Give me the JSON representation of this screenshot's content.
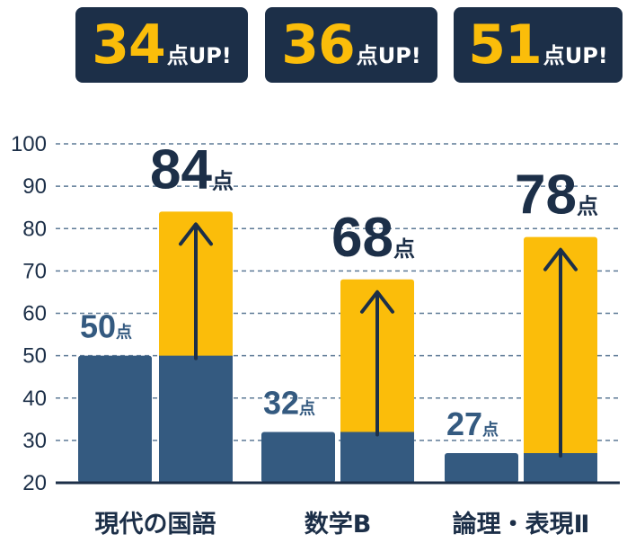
{
  "badges": [
    {
      "value": "34",
      "suffix": "点UP!"
    },
    {
      "value": "36",
      "suffix": "点UP!"
    },
    {
      "value": "51",
      "suffix": "点UP!"
    }
  ],
  "chart_data": {
    "type": "bar",
    "categories": [
      "現代の国語",
      "数学B",
      "論理・表現Ⅱ"
    ],
    "series": [
      {
        "values": [
          50,
          32,
          27
        ]
      },
      {
        "values": [
          84,
          68,
          78
        ]
      }
    ],
    "before_labels": [
      "50点",
      "32点",
      "27点"
    ],
    "after_labels": [
      "84点",
      "68点",
      "78点"
    ],
    "ylim": [
      20,
      100
    ],
    "yticks": [
      20,
      30,
      40,
      50,
      60,
      70,
      80,
      90,
      100
    ],
    "grid": true,
    "colors": {
      "base": "#345a80",
      "increase": "#fbbd0a",
      "dark": "#1c2f48",
      "grid": "#5d7a96"
    }
  }
}
